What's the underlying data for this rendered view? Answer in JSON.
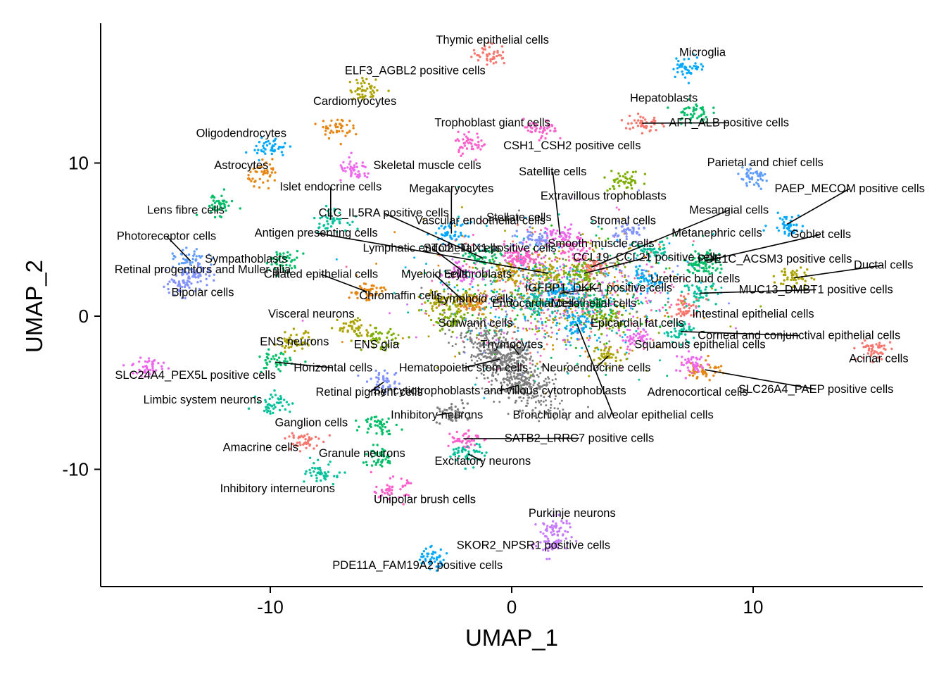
{
  "chart_data": {
    "type": "scatter",
    "title": "",
    "xlabel": "UMAP_1",
    "ylabel": "UMAP_2",
    "xlim": [
      -17,
      17
    ],
    "ylim": [
      -17.5,
      19
    ],
    "x_ticks": [
      {
        "value": -10,
        "label": "-10"
      },
      {
        "value": 0,
        "label": "0"
      },
      {
        "value": 10,
        "label": "10"
      }
    ],
    "y_ticks": [
      {
        "value": -10,
        "label": "-10"
      },
      {
        "value": 0,
        "label": "0"
      },
      {
        "value": 10,
        "label": "10"
      }
    ],
    "grid": false,
    "legend": "none",
    "clusters": [
      {
        "name": "Thymic epithelial cells",
        "x": -0.9,
        "y": 17.1,
        "color": "#F8766D",
        "label_x": -0.8,
        "label_y": 17.8
      },
      {
        "name": "Microglia",
        "x": 7.3,
        "y": 16.3,
        "color": "#00A9FF",
        "label_x": 7.9,
        "label_y": 17.0
      },
      {
        "name": "ELF3_AGBL2 positive cells",
        "x": -6.0,
        "y": 14.8,
        "color": "#ABA300",
        "label_x": -4.0,
        "label_y": 15.8
      },
      {
        "name": "Cardiomyocytes",
        "x": -7.3,
        "y": 12.3,
        "color": "#E68613",
        "label_x": -6.5,
        "label_y": 13.8
      },
      {
        "name": "Hepatoblasts",
        "x": 7.5,
        "y": 13.3,
        "color": "#00BE67",
        "label_x": 6.3,
        "label_y": 14.0
      },
      {
        "name": "AFP_ALB positive cells",
        "x": 5.4,
        "y": 12.6,
        "color": "#F8766D",
        "label_x": 9.0,
        "label_y": 12.4,
        "leader": true
      },
      {
        "name": "Trophoblast giant cells",
        "x": -1.7,
        "y": 11.3,
        "color": "#FF61CC",
        "label_x": -0.8,
        "label_y": 12.4
      },
      {
        "name": "CSH1_CSH2 positive cells",
        "x": 1.2,
        "y": 12.1,
        "color": "#FF61CC",
        "label_x": 2.5,
        "label_y": 10.9
      },
      {
        "name": "Oligodendrocytes",
        "x": -10.0,
        "y": 11.0,
        "color": "#00A9FF",
        "label_x": -11.2,
        "label_y": 11.7
      },
      {
        "name": "Astrocytes",
        "x": -10.2,
        "y": 9.3,
        "color": "#E68613",
        "label_x": -11.2,
        "label_y": 9.6
      },
      {
        "name": "Skeletal muscle cells",
        "x": -6.5,
        "y": 9.5,
        "color": "#ED68ED",
        "label_x": -3.5,
        "label_y": 9.6
      },
      {
        "name": "Parietal and chief cells",
        "x": 10.0,
        "y": 9.0,
        "color": "#619CFF",
        "label_x": 10.5,
        "label_y": 9.8
      },
      {
        "name": "Satellite cells",
        "x": 2.0,
        "y": 5.3,
        "color": "#ED68ED",
        "label_x": 1.7,
        "label_y": 9.2,
        "leader": true
      },
      {
        "name": "PAEP_MECOM positive cells",
        "x": 11.4,
        "y": 6.0,
        "color": "#00A9FF",
        "label_x": 14.0,
        "label_y": 8.1,
        "leader": true
      },
      {
        "name": "Islet endocrine cells",
        "x": -7.5,
        "y": 6.3,
        "color": "#00C19A",
        "label_x": -7.5,
        "label_y": 8.2,
        "leader": true
      },
      {
        "name": "Megakaryocytes",
        "x": -2.5,
        "y": 5.4,
        "color": "#00A9FF",
        "label_x": -2.5,
        "label_y": 8.1,
        "leader": true
      },
      {
        "name": "Extravillous trophoblasts",
        "x": 4.7,
        "y": 8.8,
        "color": "#7CAE00",
        "label_x": 3.8,
        "label_y": 7.6
      },
      {
        "name": "Lens fibre cells",
        "x": -12.2,
        "y": 7.3,
        "color": "#00BE67",
        "label_x": -13.5,
        "label_y": 6.7
      },
      {
        "name": "CLC_IL5RA positive cells",
        "x": -1.2,
        "y": 3.8,
        "color": "#00BE67",
        "label_x": -5.3,
        "label_y": 6.5,
        "leader": true
      },
      {
        "name": "Mesangial cells",
        "x": 3.3,
        "y": 3.2,
        "color": "#F8766D",
        "label_x": 9.0,
        "label_y": 6.7,
        "leader": true
      },
      {
        "name": "Vascular endothelial cells",
        "x": 0.3,
        "y": 4.0,
        "color": "#FF61CC",
        "label_x": -1.3,
        "label_y": 6.0
      },
      {
        "name": "Stellate cells",
        "x": 1.0,
        "y": 5.0,
        "color": "#8494FF",
        "label_x": 0.3,
        "label_y": 6.2
      },
      {
        "name": "Stromal cells",
        "x": 4.8,
        "y": 5.5,
        "color": "#8494FF",
        "label_x": 4.6,
        "label_y": 6.0
      },
      {
        "name": "Antigen presenting cells",
        "x": 1.5,
        "y": 2.8,
        "color": "#ABA300",
        "label_x": -8.1,
        "label_y": 5.2,
        "leader": true
      },
      {
        "name": "Metanephric cells",
        "x": 5.7,
        "y": 4.2,
        "color": "#00C19A",
        "label_x": 8.5,
        "label_y": 5.2
      },
      {
        "name": "Goblet cells",
        "x": 8.0,
        "y": 3.6,
        "color": "#00BE67",
        "label_x": 12.8,
        "label_y": 5.1,
        "leader": true
      },
      {
        "name": "Photoreceptor cells",
        "x": -13.3,
        "y": 3.6,
        "color": "#619CFF",
        "label_x": -14.3,
        "label_y": 5.0,
        "leader": true
      },
      {
        "name": "Smooth muscle cells",
        "x": 2.5,
        "y": 4.4,
        "color": "#FF61CC",
        "label_x": 3.7,
        "label_y": 4.5
      },
      {
        "name": "Lymphatic endothelial cells",
        "x": -2.0,
        "y": 2.9,
        "color": "#ED68ED",
        "label_x": -3.3,
        "label_y": 4.2,
        "leader": true
      },
      {
        "name": "STC2_TLX1 positive cells",
        "x": 0.5,
        "y": 3.7,
        "color": "#FF61CC",
        "label_x": -0.9,
        "label_y": 4.2
      },
      {
        "name": "Sympathoblasts",
        "x": -9.5,
        "y": 3.6,
        "color": "#00BE67",
        "label_x": -11.0,
        "label_y": 3.5
      },
      {
        "name": "CCL19_CCL21 positive cells",
        "x": 3.0,
        "y": 2.8,
        "color": "#7CAE00",
        "label_x": 5.6,
        "label_y": 3.6,
        "leader": true
      },
      {
        "name": "PDE1C_ACSM3 positive cells",
        "x": 7.9,
        "y": 3.4,
        "color": "#00BE67",
        "label_x": 10.9,
        "label_y": 3.5
      },
      {
        "name": "Retinal progenitors and Muller glia",
        "x": -13.0,
        "y": 2.8,
        "color": "#8494FF",
        "label_x": -12.8,
        "label_y": 2.8
      },
      {
        "name": "Ductal cells",
        "x": 11.7,
        "y": 2.5,
        "color": "#ABA300",
        "label_x": 15.4,
        "label_y": 3.1,
        "leader": true
      },
      {
        "name": "Erythroblasts",
        "x": -0.2,
        "y": 2.9,
        "color": "#C49A00",
        "label_x": -1.4,
        "label_y": 2.5
      },
      {
        "name": "Ciliated epithelial cells",
        "x": -6.0,
        "y": 1.6,
        "color": "#E68613",
        "label_x": -7.9,
        "label_y": 2.5,
        "leader": true
      },
      {
        "name": "Myeloid cells",
        "x": -2.0,
        "y": 1.0,
        "color": "#ABA300",
        "label_x": -3.2,
        "label_y": 2.5,
        "leader": true
      },
      {
        "name": "Bipolar cells",
        "x": -13.8,
        "y": 2.0,
        "color": "#8494FF",
        "label_x": -12.8,
        "label_y": 1.3
      },
      {
        "name": "Ureteric bud cells",
        "x": 5.5,
        "y": 2.3,
        "color": "#00A9FF",
        "label_x": 7.6,
        "label_y": 2.2
      },
      {
        "name": "IGFBP1_DKK1 positive cells",
        "x": 2.0,
        "y": 1.5,
        "color": "#00A9FF",
        "label_x": 3.6,
        "label_y": 1.6,
        "leader": true
      },
      {
        "name": "MUC13_DMBT1 positive cells",
        "x": 7.8,
        "y": 1.5,
        "color": "#00C19A",
        "label_x": 12.6,
        "label_y": 1.5,
        "leader": true
      },
      {
        "name": "Chromaffin cells",
        "x": -3.0,
        "y": 1.0,
        "color": "#ABA300",
        "label_x": -4.6,
        "label_y": 1.1
      },
      {
        "name": "Lymphoid cells",
        "x": -1.5,
        "y": 0.8,
        "color": "#E68613",
        "label_x": -1.5,
        "label_y": 0.9
      },
      {
        "name": "Endocardial cells",
        "x": 1.0,
        "y": 0.9,
        "color": "#00C19A",
        "label_x": 1.0,
        "label_y": 0.6,
        "leader": true
      },
      {
        "name": "Mesothelial cells",
        "x": 3.5,
        "y": 0.8,
        "color": "#00BE67",
        "label_x": 3.4,
        "label_y": 0.6
      },
      {
        "name": "Intestinal epithelial cells",
        "x": 7.2,
        "y": 0.5,
        "color": "#F8766D",
        "label_x": 10.0,
        "label_y": -0.1
      },
      {
        "name": "Visceral neurons",
        "x": -6.5,
        "y": -0.8,
        "color": "#ABA300",
        "label_x": -8.3,
        "label_y": -0.1
      },
      {
        "name": "Schwann cells",
        "x": -2.5,
        "y": -0.3,
        "color": "#7CAE00",
        "label_x": -1.5,
        "label_y": -0.7
      },
      {
        "name": "Epicardial fat cells",
        "x": 4.0,
        "y": -0.2,
        "color": "#7CAE00",
        "label_x": 5.2,
        "label_y": -0.7
      },
      {
        "name": "Corneal and conjunctival epithelial cells",
        "x": 7.0,
        "y": -1.0,
        "color": "#00C19A",
        "label_x": 11.9,
        "label_y": -1.5,
        "leader": true
      },
      {
        "name": "ENS neurons",
        "x": -9.0,
        "y": -1.7,
        "color": "#ABA300",
        "label_x": -9.0,
        "label_y": -1.9
      },
      {
        "name": "ENS glia",
        "x": -5.5,
        "y": -1.5,
        "color": "#7CAE00",
        "label_x": -5.6,
        "label_y": -2.1
      },
      {
        "name": "Thymocytes",
        "x": 0.3,
        "y": -2.5,
        "color": "#7F7F7F",
        "label_x": 0.0,
        "label_y": -2.1,
        "leader": true
      },
      {
        "name": "Squamous epithelial cells",
        "x": 5.2,
        "y": -1.5,
        "color": "#ED68ED",
        "label_x": 7.8,
        "label_y": -2.1
      },
      {
        "name": "Acinar cells",
        "x": 15.0,
        "y": -2.2,
        "color": "#F8766D",
        "label_x": 15.2,
        "label_y": -3.0
      },
      {
        "name": "Horizontal cells",
        "x": -9.8,
        "y": -3.0,
        "color": "#00BE67",
        "label_x": -7.4,
        "label_y": -3.6,
        "leader": true
      },
      {
        "name": "Hematopoietic stem cells",
        "x": -0.5,
        "y": -2.8,
        "color": "#7F7F7F",
        "label_x": -2.0,
        "label_y": -3.6,
        "leader": true
      },
      {
        "name": "Neuroendocrine cells",
        "x": 4.0,
        "y": -2.6,
        "color": "#ABA300",
        "label_x": 3.5,
        "label_y": -3.6,
        "leader": true
      },
      {
        "name": "SLC24A4_PEX5L positive cells",
        "x": -15.0,
        "y": -3.3,
        "color": "#ED68ED",
        "label_x": -13.1,
        "label_y": -4.1
      },
      {
        "name": "SLC26A4_PAEP positive cells",
        "x": 8.0,
        "y": -3.5,
        "color": "#E68613",
        "label_x": 12.6,
        "label_y": -5.0,
        "leader": true
      },
      {
        "name": "Retinal pigment cells",
        "x": -5.3,
        "y": -4.3,
        "color": "#8494FF",
        "label_x": -5.9,
        "label_y": -5.2,
        "leader": true
      },
      {
        "name": "Syncytiotrophoblasts and villous cytotrophoblasts",
        "x": 0.3,
        "y": -4.5,
        "color": "#7F7F7F",
        "label_x": -0.5,
        "label_y": -5.1,
        "leader": true
      },
      {
        "name": "Adrenocortical cells",
        "x": 7.5,
        "y": -3.2,
        "color": "#ED68ED",
        "label_x": 7.7,
        "label_y": -5.2
      },
      {
        "name": "Limbic system neurons",
        "x": -9.8,
        "y": -5.7,
        "color": "#00C19A",
        "label_x": -12.8,
        "label_y": -5.7
      },
      {
        "name": "Inhibitory neurons",
        "x": -2.5,
        "y": -6.3,
        "color": "#7F7F7F",
        "label_x": -3.1,
        "label_y": -6.7,
        "leader": true
      },
      {
        "name": "Bronchiolar and alveolar epithelial cells",
        "x": 2.7,
        "y": -0.5,
        "color": "#00A9FF",
        "label_x": 4.2,
        "label_y": -6.7,
        "leader": true
      },
      {
        "name": "Ganglion cells",
        "x": -5.5,
        "y": -7.0,
        "color": "#00BE67",
        "label_x": -8.3,
        "label_y": -7.2
      },
      {
        "name": "SATB2_LRRC7 positive cells",
        "x": -2.0,
        "y": -8.0,
        "color": "#FF61CC",
        "label_x": 2.8,
        "label_y": -8.2,
        "leader": true
      },
      {
        "name": "Amacrine cells",
        "x": -8.7,
        "y": -8.2,
        "color": "#F8766D",
        "label_x": -10.4,
        "label_y": -8.8
      },
      {
        "name": "Granule neurons",
        "x": -5.5,
        "y": -9.2,
        "color": "#00BE67",
        "label_x": -6.2,
        "label_y": -9.2
      },
      {
        "name": "Excitatory neurons",
        "x": -1.8,
        "y": -9.0,
        "color": "#00C19A",
        "label_x": -1.2,
        "label_y": -9.7,
        "leader": true
      },
      {
        "name": "Inhibitory interneurons",
        "x": -7.8,
        "y": -10.3,
        "color": "#00C19A",
        "label_x": -9.7,
        "label_y": -11.5
      },
      {
        "name": "Unipolar brush cells",
        "x": -5.0,
        "y": -11.3,
        "color": "#FF61CC",
        "label_x": -3.6,
        "label_y": -12.2
      },
      {
        "name": "Purkinje neurons",
        "x": 1.8,
        "y": -13.8,
        "color": "#C77CFF",
        "label_x": 2.5,
        "label_y": -13.1
      },
      {
        "name": "SKOR2_NPSR1 positive cells",
        "x": 1.7,
        "y": -15.0,
        "color": "#C77CFF",
        "label_x": 0.9,
        "label_y": -15.2
      },
      {
        "name": "PDE11A_FAM19A2 positive cells",
        "x": -3.4,
        "y": -15.8,
        "color": "#00A9FF",
        "label_x": -3.9,
        "label_y": -16.5
      }
    ]
  }
}
